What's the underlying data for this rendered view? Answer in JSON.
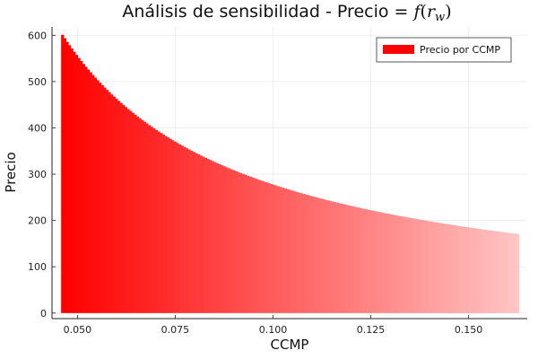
{
  "chart_data": {
    "type": "bar",
    "title_prefix": "Análisis de sensibilidad - Precio = ",
    "title_math": {
      "f": "f",
      "open": "(",
      "r": "r",
      "sub": "w",
      "close": ")"
    },
    "xlabel": "CCMP",
    "ylabel": "Precio",
    "xlim": [
      0.0435,
      0.165
    ],
    "ylim": [
      -12,
      618
    ],
    "x_ticks": [
      0.05,
      0.075,
      0.1,
      0.125,
      0.15
    ],
    "x_tick_labels": [
      "0.050",
      "0.075",
      "0.100",
      "0.125",
      "0.150"
    ],
    "y_ticks": [
      0,
      100,
      200,
      300,
      400,
      500,
      600
    ],
    "y_tick_labels": [
      "0",
      "100",
      "200",
      "300",
      "400",
      "500",
      "600"
    ],
    "grid": true,
    "legend_position": "top-right",
    "series": [
      {
        "name": "Precio por CCMP",
        "color": "#ff0000",
        "fade_color": "#ffc4c4",
        "formula": "precio = 27.75 / ccmp",
        "x_start": 0.0462,
        "x_end": 0.1626,
        "x_step": 0.0006,
        "sample_points": [
          {
            "x": 0.0462,
            "y": 601
          },
          {
            "x": 0.05,
            "y": 555
          },
          {
            "x": 0.075,
            "y": 370
          },
          {
            "x": 0.1,
            "y": 278
          },
          {
            "x": 0.125,
            "y": 222
          },
          {
            "x": 0.15,
            "y": 185
          },
          {
            "x": 0.1626,
            "y": 171
          }
        ]
      }
    ]
  }
}
